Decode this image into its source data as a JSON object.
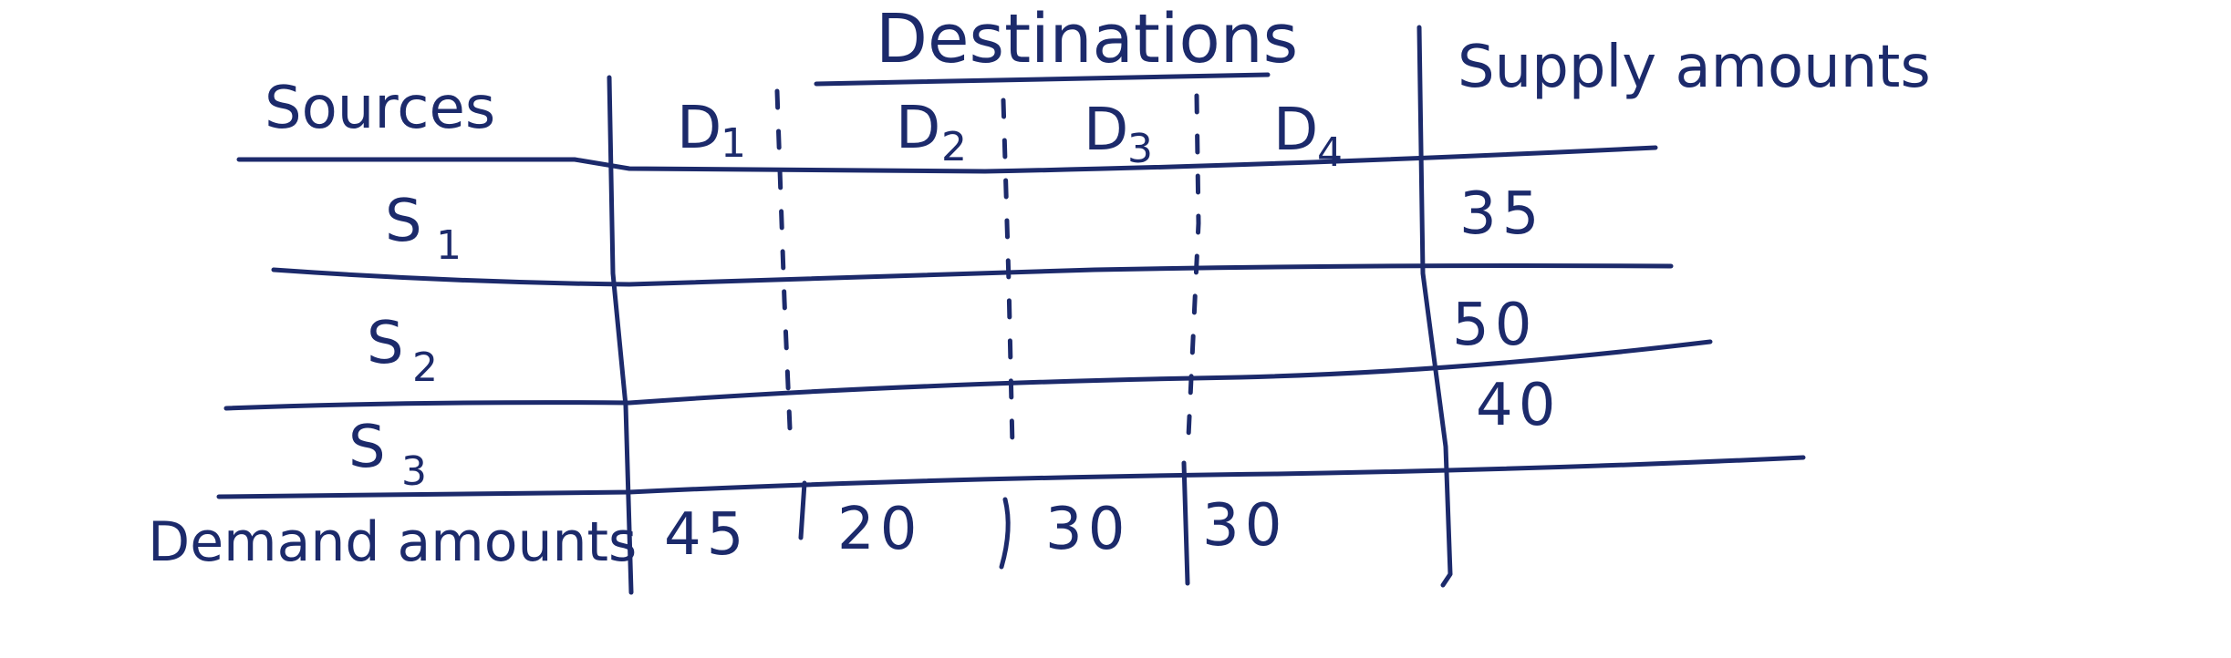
{
  "table": {
    "header": {
      "destinations": "Destinations",
      "sources": "Sources",
      "supply": "Supply amounts",
      "demand": "Demand amounts"
    },
    "destinations": [
      {
        "letter": "D",
        "sub": "1"
      },
      {
        "letter": "D",
        "sub": "2"
      },
      {
        "letter": "D",
        "sub": "3"
      },
      {
        "letter": "D",
        "sub": "4"
      }
    ],
    "sources": [
      {
        "letter": "S",
        "sub": "1"
      },
      {
        "letter": "S",
        "sub": "2"
      },
      {
        "letter": "S",
        "sub": "3"
      }
    ],
    "supply_amounts": [
      "35",
      "50",
      "40"
    ],
    "demand_amounts": [
      "45",
      "20",
      "30",
      "30"
    ]
  },
  "colors": {
    "ink": "#1c2a6b",
    "background": "#ffffff"
  }
}
